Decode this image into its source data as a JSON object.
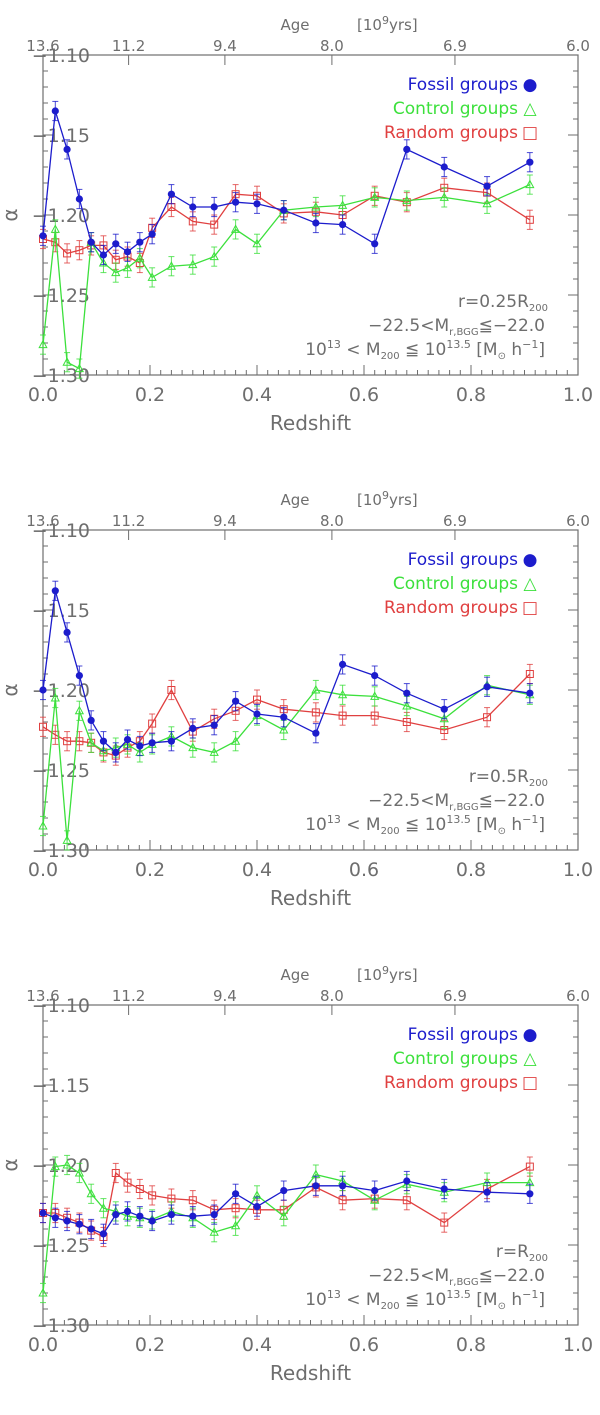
{
  "chart_data": [
    {
      "type": "line",
      "top_axis": {
        "title": "Age",
        "units_prefix": "[10",
        "units_exp": "9",
        "units_suffix": "yrs]",
        "ticks": [
          "13.6",
          "11.2",
          "9.4",
          "8.0",
          "6.9",
          "6.0"
        ],
        "tick_redshifts": [
          0.0,
          0.16,
          0.34,
          0.54,
          0.77,
          1.0
        ]
      },
      "xlabel": "Redshift",
      "ylabel": "α",
      "xlim": [
        0.0,
        1.0
      ],
      "ylim": [
        -1.3,
        -1.1
      ],
      "x_ticks": [
        "0.0",
        "0.2",
        "0.4",
        "0.6",
        "0.8",
        "1.0"
      ],
      "y_ticks": [
        "−1.10",
        "−1.15",
        "−1.20",
        "−1.25",
        "−1.30"
      ],
      "annotation": {
        "line1_prefix": "r=0.25R",
        "line1_sub": "200",
        "line2_prefix": "−22.5<M",
        "line2_sub": "r,BGG",
        "line2_suffix": "≦−22.0",
        "line3_a": "10",
        "line3_a_exp": "13",
        "line3_b": " < M",
        "line3_b_sub": "200",
        "line3_c": " ≦ 10",
        "line3_c_exp": "13.5",
        "line3_d": " [M",
        "line3_d_sub": "⊙",
        "line3_e": " h",
        "line3_e_exp": "−1",
        "line3_f": "]"
      },
      "series": [
        {
          "name": "Fossil groups",
          "marker": "●",
          "color": "#1c1ccc",
          "x": [
            0.0,
            0.023,
            0.045,
            0.068,
            0.09,
            0.113,
            0.136,
            0.158,
            0.181,
            0.204,
            0.24,
            0.28,
            0.32,
            0.36,
            0.4,
            0.45,
            0.51,
            0.56,
            0.62,
            0.68,
            0.75,
            0.83,
            0.91
          ],
          "y": [
            -1.213,
            -1.135,
            -1.159,
            -1.19,
            -1.217,
            -1.225,
            -1.218,
            -1.223,
            -1.217,
            -1.212,
            -1.187,
            -1.195,
            -1.195,
            -1.192,
            -1.193,
            -1.197,
            -1.205,
            -1.206,
            -1.218,
            -1.159,
            -1.17,
            -1.182,
            -1.167
          ]
        },
        {
          "name": "Control groups",
          "marker": "△",
          "color": "#3ce03c",
          "x": [
            0.0,
            0.023,
            0.045,
            0.068,
            0.09,
            0.113,
            0.136,
            0.158,
            0.181,
            0.204,
            0.24,
            0.28,
            0.32,
            0.36,
            0.4,
            0.45,
            0.51,
            0.56,
            0.62,
            0.68,
            0.75,
            0.83,
            0.91
          ],
          "y": [
            -1.281,
            -1.209,
            -1.292,
            -1.296,
            -1.217,
            -1.23,
            -1.236,
            -1.233,
            -1.227,
            -1.239,
            -1.232,
            -1.231,
            -1.226,
            -1.209,
            -1.218,
            -1.197,
            -1.195,
            -1.194,
            -1.189,
            -1.191,
            -1.189,
            -1.193,
            -1.181
          ]
        },
        {
          "name": "Random groups",
          "marker": "□",
          "color": "#e04040",
          "x": [
            0.0,
            0.023,
            0.045,
            0.068,
            0.09,
            0.113,
            0.136,
            0.158,
            0.181,
            0.204,
            0.24,
            0.28,
            0.32,
            0.36,
            0.4,
            0.45,
            0.51,
            0.56,
            0.62,
            0.68,
            0.75,
            0.83,
            0.91
          ],
          "y": [
            -1.215,
            -1.217,
            -1.224,
            -1.222,
            -1.219,
            -1.219,
            -1.228,
            -1.226,
            -1.23,
            -1.208,
            -1.195,
            -1.204,
            -1.206,
            -1.187,
            -1.188,
            -1.199,
            -1.198,
            -1.2,
            -1.188,
            -1.192,
            -1.183,
            -1.186,
            -1.203
          ]
        }
      ]
    },
    {
      "type": "line",
      "top_axis": {
        "title": "Age",
        "units_prefix": "[10",
        "units_exp": "9",
        "units_suffix": "yrs]",
        "ticks": [
          "13.6",
          "11.2",
          "9.4",
          "8.0",
          "6.9",
          "6.0"
        ],
        "tick_redshifts": [
          0.0,
          0.16,
          0.34,
          0.54,
          0.77,
          1.0
        ]
      },
      "xlabel": "Redshift",
      "ylabel": "α",
      "xlim": [
        0.0,
        1.0
      ],
      "ylim": [
        -1.3,
        -1.1
      ],
      "x_ticks": [
        "0.0",
        "0.2",
        "0.4",
        "0.6",
        "0.8",
        "1.0"
      ],
      "y_ticks": [
        "−1.10",
        "−1.15",
        "−1.20",
        "−1.25",
        "−1.30"
      ],
      "annotation": {
        "line1_prefix": "r=0.5R",
        "line1_sub": "200",
        "line2_prefix": "−22.5<M",
        "line2_sub": "r,BGG",
        "line2_suffix": "≦−22.0",
        "line3_a": "10",
        "line3_a_exp": "13",
        "line3_b": " < M",
        "line3_b_sub": "200",
        "line3_c": " ≦ 10",
        "line3_c_exp": "13.5",
        "line3_d": " [M",
        "line3_d_sub": "⊙",
        "line3_e": " h",
        "line3_e_exp": "−1",
        "line3_f": "]"
      },
      "series": [
        {
          "name": "Fossil groups",
          "marker": "●",
          "color": "#1c1ccc",
          "x": [
            0.0,
            0.023,
            0.045,
            0.068,
            0.09,
            0.113,
            0.136,
            0.158,
            0.181,
            0.204,
            0.24,
            0.28,
            0.32,
            0.36,
            0.4,
            0.45,
            0.51,
            0.56,
            0.62,
            0.68,
            0.75,
            0.83,
            0.91
          ],
          "y": [
            -1.2,
            -1.138,
            -1.164,
            -1.191,
            -1.219,
            -1.232,
            -1.239,
            -1.231,
            -1.235,
            -1.233,
            -1.232,
            -1.224,
            -1.222,
            -1.207,
            -1.215,
            -1.217,
            -1.227,
            -1.184,
            -1.191,
            -1.202,
            -1.212,
            -1.198,
            -1.202
          ]
        },
        {
          "name": "Control groups",
          "marker": "△",
          "color": "#3ce03c",
          "x": [
            0.0,
            0.023,
            0.045,
            0.068,
            0.09,
            0.113,
            0.136,
            0.158,
            0.181,
            0.204,
            0.24,
            0.28,
            0.32,
            0.36,
            0.4,
            0.45,
            0.51,
            0.56,
            0.62,
            0.68,
            0.75,
            0.83,
            0.91
          ],
          "y": [
            -1.285,
            -1.205,
            -1.294,
            -1.213,
            -1.233,
            -1.238,
            -1.236,
            -1.234,
            -1.239,
            -1.234,
            -1.229,
            -1.236,
            -1.239,
            -1.232,
            -1.216,
            -1.225,
            -1.2,
            -1.203,
            -1.204,
            -1.21,
            -1.218,
            -1.197,
            -1.203
          ]
        },
        {
          "name": "Random groups",
          "marker": "□",
          "color": "#e04040",
          "x": [
            0.0,
            0.023,
            0.045,
            0.068,
            0.09,
            0.113,
            0.136,
            0.158,
            0.181,
            0.204,
            0.24,
            0.28,
            0.32,
            0.36,
            0.4,
            0.45,
            0.51,
            0.56,
            0.62,
            0.68,
            0.75,
            0.83,
            0.91
          ],
          "y": [
            -1.223,
            -1.228,
            -1.232,
            -1.232,
            -1.233,
            -1.239,
            -1.241,
            -1.236,
            -1.232,
            -1.221,
            -1.2,
            -1.226,
            -1.218,
            -1.213,
            -1.206,
            -1.212,
            -1.214,
            -1.216,
            -1.216,
            -1.22,
            -1.225,
            -1.217,
            -1.19
          ]
        }
      ]
    },
    {
      "type": "line",
      "top_axis": {
        "title": "Age",
        "units_prefix": "[10",
        "units_exp": "9",
        "units_suffix": "yrs]",
        "ticks": [
          "13.6",
          "11.2",
          "9.4",
          "8.0",
          "6.9",
          "6.0"
        ],
        "tick_redshifts": [
          0.0,
          0.16,
          0.34,
          0.54,
          0.77,
          1.0
        ]
      },
      "xlabel": "Redshift",
      "ylabel": "α",
      "xlim": [
        0.0,
        1.0
      ],
      "ylim": [
        -1.3,
        -1.1
      ],
      "x_ticks": [
        "0.0",
        "0.2",
        "0.4",
        "0.6",
        "0.8",
        "1.0"
      ],
      "y_ticks": [
        "−1.10",
        "−1.15",
        "−1.20",
        "−1.25",
        "−1.30"
      ],
      "annotation": {
        "line1_prefix": "r=R",
        "line1_sub": "200",
        "line2_prefix": "−22.5<M",
        "line2_sub": "r,BGG",
        "line2_suffix": "≦−22.0",
        "line3_a": "10",
        "line3_a_exp": "13",
        "line3_b": " < M",
        "line3_b_sub": "200",
        "line3_c": " ≦ 10",
        "line3_c_exp": "13.5",
        "line3_d": " [M",
        "line3_d_sub": "⊙",
        "line3_e": " h",
        "line3_e_exp": "−1",
        "line3_f": "]"
      },
      "series": [
        {
          "name": "Fossil groups",
          "marker": "●",
          "color": "#1c1ccc",
          "x": [
            0.0,
            0.023,
            0.045,
            0.068,
            0.09,
            0.113,
            0.136,
            0.158,
            0.181,
            0.204,
            0.24,
            0.28,
            0.32,
            0.36,
            0.4,
            0.45,
            0.51,
            0.56,
            0.62,
            0.68,
            0.75,
            0.83,
            0.91
          ],
          "y": [
            -1.23,
            -1.233,
            -1.235,
            -1.237,
            -1.24,
            -1.243,
            -1.231,
            -1.229,
            -1.232,
            -1.235,
            -1.231,
            -1.232,
            -1.231,
            -1.218,
            -1.226,
            -1.216,
            -1.213,
            -1.213,
            -1.216,
            -1.21,
            -1.215,
            -1.217,
            -1.218
          ]
        },
        {
          "name": "Control groups",
          "marker": "△",
          "color": "#3ce03c",
          "x": [
            0.0,
            0.023,
            0.045,
            0.068,
            0.09,
            0.113,
            0.136,
            0.158,
            0.181,
            0.204,
            0.24,
            0.28,
            0.32,
            0.36,
            0.4,
            0.45,
            0.51,
            0.56,
            0.62,
            0.68,
            0.75,
            0.83,
            0.91
          ],
          "y": [
            -1.28,
            -1.201,
            -1.2,
            -1.205,
            -1.218,
            -1.227,
            -1.229,
            -1.232,
            -1.233,
            -1.234,
            -1.229,
            -1.233,
            -1.242,
            -1.238,
            -1.219,
            -1.232,
            -1.206,
            -1.21,
            -1.222,
            -1.212,
            -1.217,
            -1.211,
            -1.211
          ]
        },
        {
          "name": "Random groups",
          "marker": "□",
          "color": "#e04040",
          "x": [
            0.0,
            0.023,
            0.045,
            0.068,
            0.09,
            0.113,
            0.136,
            0.158,
            0.181,
            0.204,
            0.24,
            0.28,
            0.32,
            0.36,
            0.4,
            0.45,
            0.51,
            0.56,
            0.62,
            0.68,
            0.75,
            0.83,
            0.91
          ],
          "y": [
            -1.23,
            -1.23,
            -1.233,
            -1.236,
            -1.241,
            -1.245,
            -1.205,
            -1.211,
            -1.215,
            -1.219,
            -1.221,
            -1.222,
            -1.228,
            -1.227,
            -1.228,
            -1.228,
            -1.214,
            -1.222,
            -1.221,
            -1.222,
            -1.236,
            -1.215,
            -1.201
          ]
        }
      ]
    }
  ]
}
